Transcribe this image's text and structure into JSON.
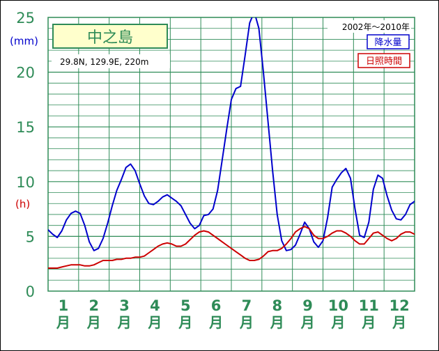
{
  "chart_data": {
    "type": "line",
    "title": "中之島",
    "location": "29.8N,  129.9E,  220m",
    "period": "2002年〜2010年",
    "y_unit_precip": "(mm)",
    "y_unit_sun": "(h)",
    "ylim": [
      0,
      25
    ],
    "yticks": [
      "0",
      "5",
      "10",
      "15",
      "20",
      "25"
    ],
    "months": [
      {
        "num": "1",
        "suffix": "月"
      },
      {
        "num": "2",
        "suffix": "月"
      },
      {
        "num": "3",
        "suffix": "月"
      },
      {
        "num": "4",
        "suffix": "月"
      },
      {
        "num": "5",
        "suffix": "月"
      },
      {
        "num": "6",
        "suffix": "月"
      },
      {
        "num": "7",
        "suffix": "月"
      },
      {
        "num": "8",
        "suffix": "月"
      },
      {
        "num": "9",
        "suffix": "月"
      },
      {
        "num": "10",
        "suffix": "月"
      },
      {
        "num": "11",
        "suffix": "月"
      },
      {
        "num": "12",
        "suffix": "月"
      }
    ],
    "series": [
      {
        "name": "降水量",
        "color": "#0000cc",
        "x": [
          0.0,
          0.15,
          0.3,
          0.45,
          0.6,
          0.75,
          0.9,
          1.05,
          1.2,
          1.35,
          1.5,
          1.65,
          1.8,
          1.95,
          2.1,
          2.25,
          2.4,
          2.55,
          2.7,
          2.85,
          3.0,
          3.15,
          3.3,
          3.45,
          3.6,
          3.75,
          3.9,
          4.05,
          4.2,
          4.35,
          4.5,
          4.65,
          4.8,
          4.95,
          5.1,
          5.25,
          5.4,
          5.55,
          5.7,
          5.85,
          6.0,
          6.15,
          6.3,
          6.45,
          6.6,
          6.75,
          6.9,
          7.05,
          7.2,
          7.35,
          7.5,
          7.65,
          7.8,
          7.95,
          8.1,
          8.25,
          8.4,
          8.55,
          8.7,
          8.85,
          9.0,
          9.15,
          9.3,
          9.45,
          9.6,
          9.75,
          9.9,
          10.05,
          10.2,
          10.35,
          10.5,
          10.65,
          10.8,
          10.95,
          11.1,
          11.25,
          11.4,
          11.55,
          11.7,
          11.85,
          12.0
        ],
        "values": [
          5.6,
          5.2,
          4.9,
          5.5,
          6.5,
          7.1,
          7.3,
          7.1,
          6.0,
          4.5,
          3.7,
          3.9,
          4.8,
          6.2,
          7.8,
          9.2,
          10.2,
          11.3,
          11.6,
          11.0,
          9.8,
          8.7,
          8.0,
          7.9,
          8.2,
          8.6,
          8.8,
          8.5,
          8.2,
          7.8,
          7.0,
          6.2,
          5.7,
          6.0,
          6.9,
          7.0,
          7.5,
          9.2,
          12.0,
          14.8,
          17.5,
          18.5,
          18.7,
          21.5,
          24.5,
          25.5,
          24.0,
          20.0,
          15.5,
          11.0,
          7.0,
          4.6,
          3.7,
          3.8,
          4.2,
          5.2,
          6.3,
          5.7,
          4.5,
          4.0,
          4.6,
          6.7,
          9.5,
          10.2,
          10.8,
          11.2,
          10.3,
          7.5,
          5.1,
          4.9,
          6.3,
          9.3,
          10.6,
          10.3,
          8.7,
          7.4,
          6.6,
          6.5,
          7.0,
          7.9,
          8.2
        ]
      },
      {
        "name": "日照時間",
        "color": "#cc0000",
        "x": [
          0.0,
          0.15,
          0.3,
          0.45,
          0.6,
          0.75,
          0.9,
          1.05,
          1.2,
          1.35,
          1.5,
          1.65,
          1.8,
          1.95,
          2.1,
          2.25,
          2.4,
          2.55,
          2.7,
          2.85,
          3.0,
          3.15,
          3.3,
          3.45,
          3.6,
          3.75,
          3.9,
          4.05,
          4.2,
          4.35,
          4.5,
          4.65,
          4.8,
          4.95,
          5.1,
          5.25,
          5.4,
          5.55,
          5.7,
          5.85,
          6.0,
          6.15,
          6.3,
          6.45,
          6.6,
          6.75,
          6.9,
          7.05,
          7.2,
          7.35,
          7.5,
          7.65,
          7.8,
          7.95,
          8.1,
          8.25,
          8.4,
          8.55,
          8.7,
          8.85,
          9.0,
          9.15,
          9.3,
          9.45,
          9.6,
          9.75,
          9.9,
          10.05,
          10.2,
          10.35,
          10.5,
          10.65,
          10.8,
          10.95,
          11.1,
          11.25,
          11.4,
          11.55,
          11.7,
          11.85,
          12.0
        ],
        "values": [
          2.1,
          2.1,
          2.1,
          2.2,
          2.3,
          2.4,
          2.4,
          2.4,
          2.3,
          2.3,
          2.4,
          2.6,
          2.8,
          2.8,
          2.8,
          2.9,
          2.9,
          3.0,
          3.0,
          3.1,
          3.1,
          3.2,
          3.5,
          3.8,
          4.1,
          4.3,
          4.4,
          4.3,
          4.1,
          4.1,
          4.3,
          4.7,
          5.1,
          5.4,
          5.5,
          5.4,
          5.1,
          4.8,
          4.5,
          4.2,
          3.9,
          3.6,
          3.3,
          3.0,
          2.8,
          2.8,
          2.9,
          3.2,
          3.6,
          3.7,
          3.7,
          3.9,
          4.3,
          4.8,
          5.4,
          5.7,
          5.9,
          5.7,
          5.1,
          4.8,
          4.8,
          5.0,
          5.3,
          5.5,
          5.5,
          5.3,
          5.0,
          4.6,
          4.3,
          4.3,
          4.8,
          5.3,
          5.4,
          5.1,
          4.8,
          4.6,
          4.8,
          5.2,
          5.4,
          5.4,
          5.2
        ]
      }
    ]
  },
  "ui": {
    "series_colors": {
      "precip": "#0000cc",
      "sun": "#cc0000"
    },
    "accent_green": "#2e8b57"
  }
}
